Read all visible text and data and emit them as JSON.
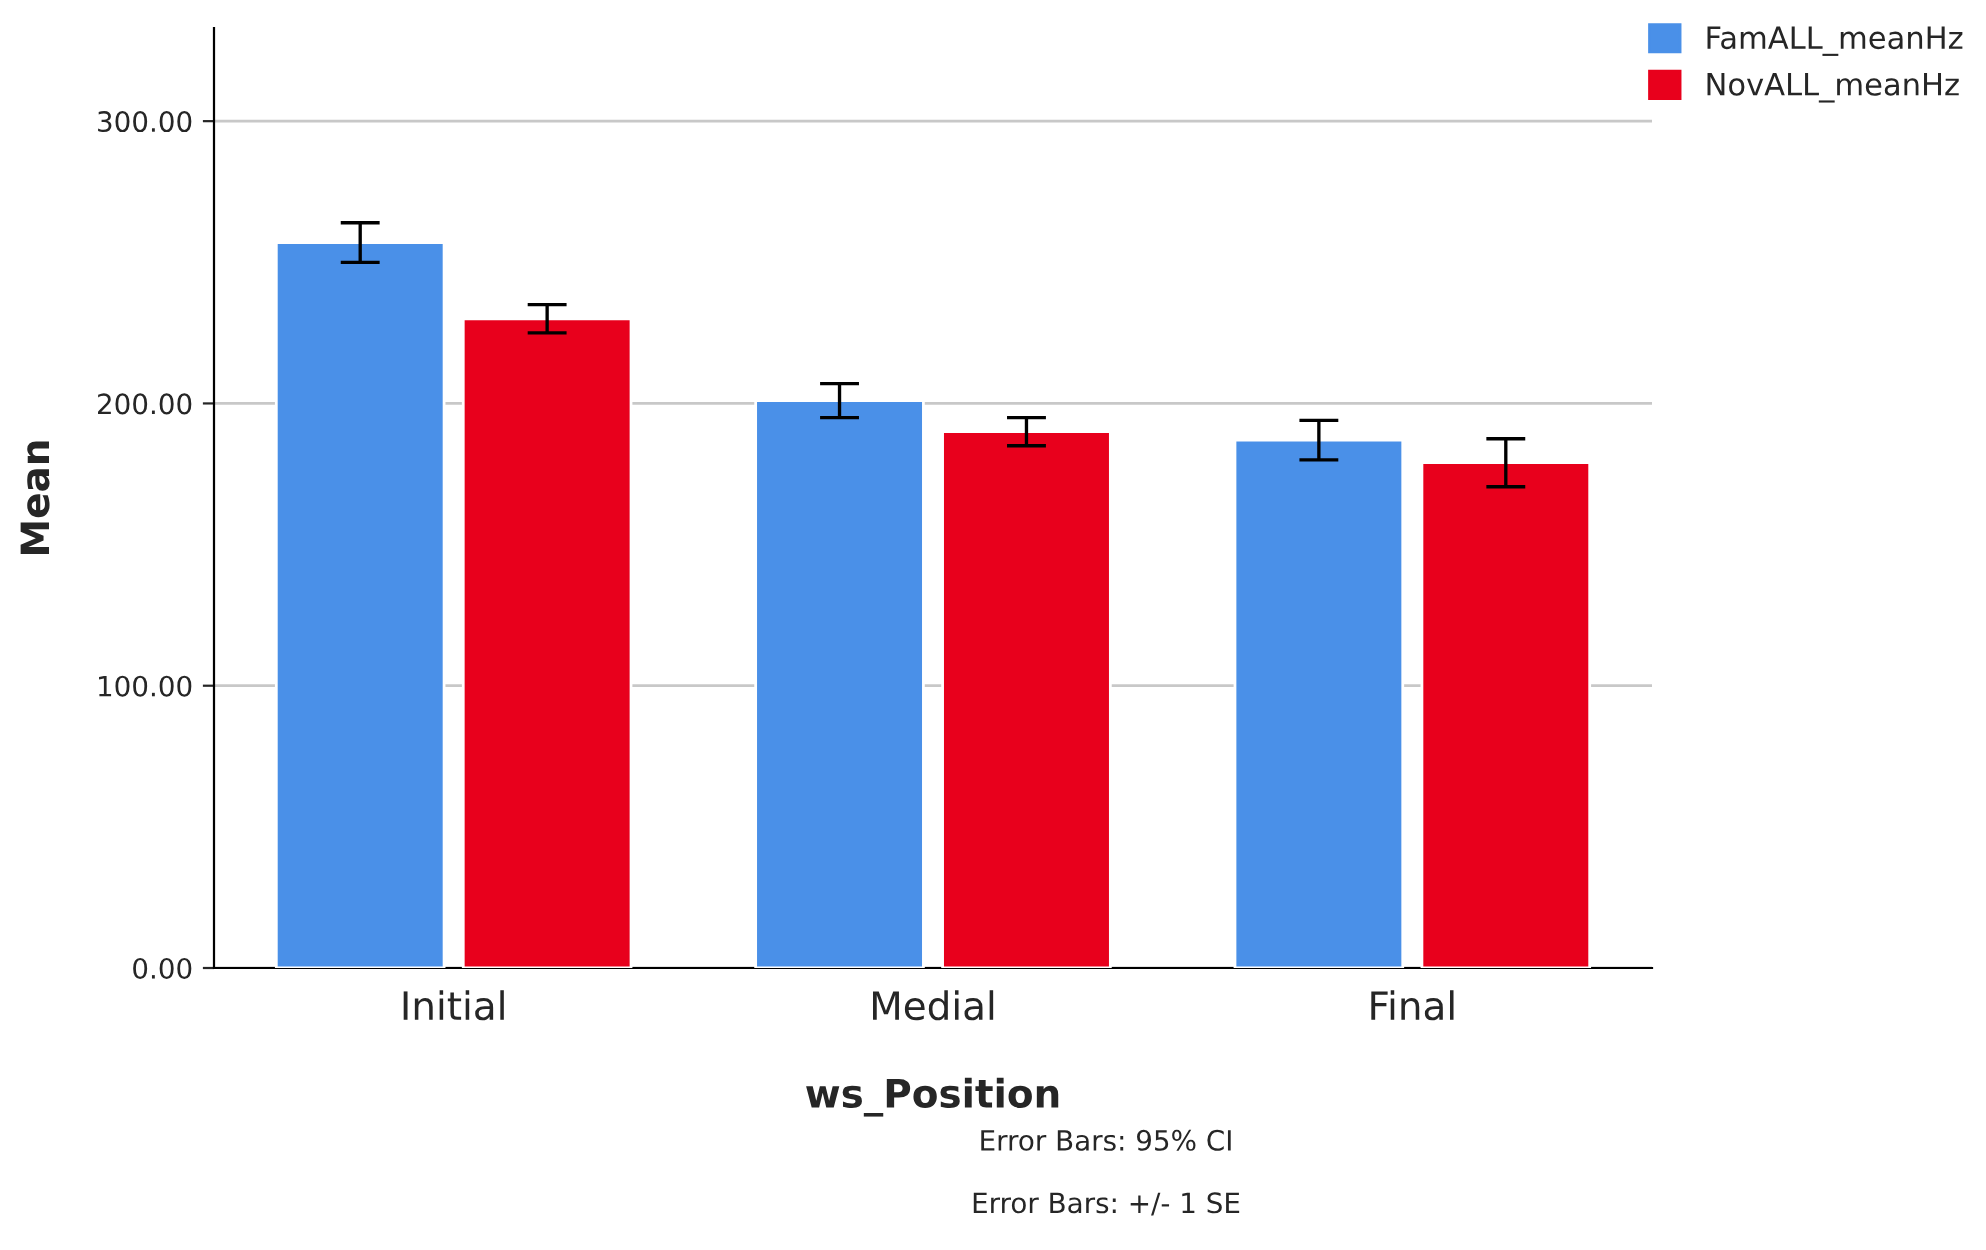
{
  "chart_data": {
    "type": "bar",
    "xlabel": "ws_Position",
    "ylabel": "Mean",
    "categories": [
      "Initial",
      "Medial",
      "Final"
    ],
    "series": [
      {
        "name": "FamALL_meanHz",
        "color": "#4a90e8",
        "values": [
          257,
          201,
          187
        ],
        "errors": [
          7,
          6,
          7
        ]
      },
      {
        "name": "NovALL_meanHz",
        "color": "#e8001c",
        "values": [
          230,
          190,
          179
        ],
        "errors": [
          5,
          5,
          8.5
        ]
      }
    ],
    "ylim": [
      0,
      333
    ],
    "yticks": [
      {
        "value": 0,
        "label": "0.00"
      },
      {
        "value": 100,
        "label": "100.00"
      },
      {
        "value": 200,
        "label": "200.00"
      },
      {
        "value": 300,
        "label": "300.00"
      }
    ],
    "grid": "y",
    "legend": "top right",
    "annotations": [
      "Error Bars: 95% CI",
      "Error Bars: +/- 1 SE"
    ]
  }
}
